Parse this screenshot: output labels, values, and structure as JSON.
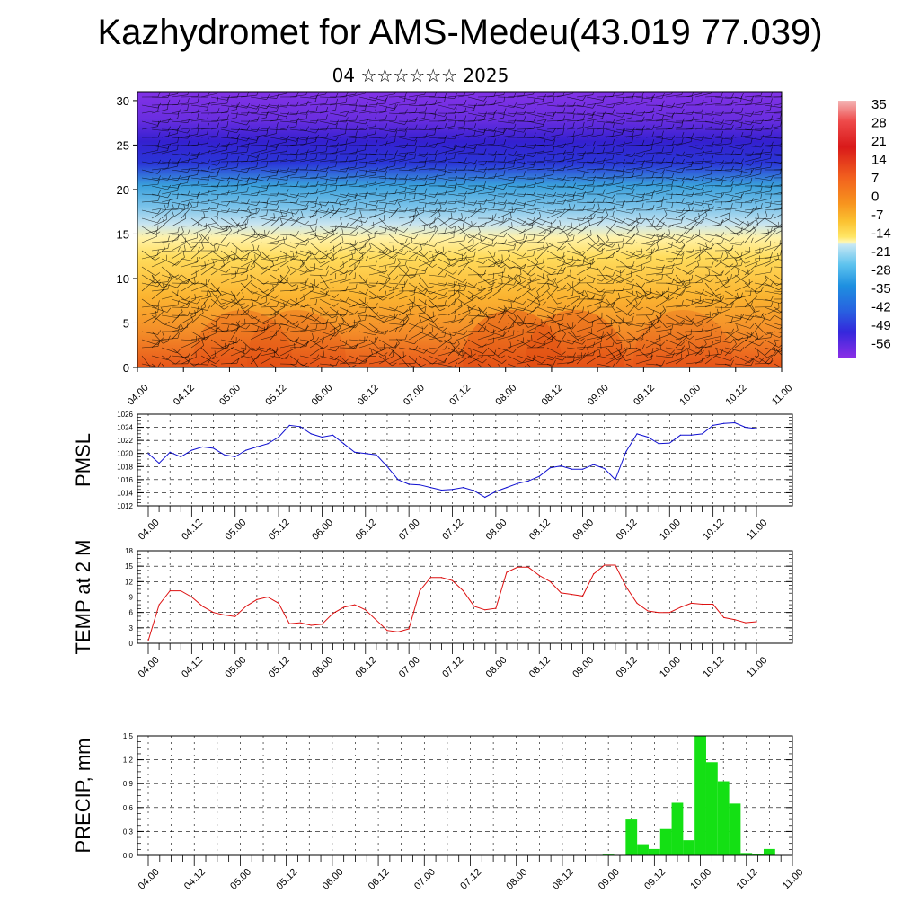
{
  "title": "Kazhydromet for AMS-Medeu(43.019 77.039)",
  "subtitle": "04 ☆☆☆☆☆☆ 2025",
  "colorbar": {
    "labels": [
      "35",
      "28",
      "21",
      "14",
      "7",
      "0",
      "-7",
      "-14",
      "-21",
      "-28",
      "-35",
      "-42",
      "-49",
      "-56"
    ]
  },
  "chart_data": [
    {
      "type": "heatmap",
      "name": "temperature-wind-cross-section",
      "x_ticks": [
        "04.00",
        "04.12",
        "05.00",
        "05.12",
        "06.00",
        "06.12",
        "07.00",
        "07.12",
        "08.00",
        "08.12",
        "09.00",
        "09.12",
        "10.00",
        "10.12",
        "11.00"
      ],
      "y_ticks": [
        "0",
        "5",
        "10",
        "15",
        "20",
        "25",
        "30"
      ],
      "ylim": [
        0,
        31
      ],
      "colors": {
        "warm": "#e8561a",
        "mid": "#ffd84a",
        "cold": "#7dc4ea",
        "upper": "#2a36d8",
        "top": "#7a2ee0"
      }
    },
    {
      "type": "line",
      "ylabel": "PMSL",
      "color": "#1010d0",
      "x_ticks": [
        "04.00",
        "04.12",
        "05.00",
        "05.12",
        "06.00",
        "06.12",
        "07.00",
        "07.12",
        "08.00",
        "08.12",
        "09.00",
        "09.12",
        "10.00",
        "10.12",
        "11.00"
      ],
      "y_ticks": [
        "1012",
        "1014",
        "1016",
        "1018",
        "1020",
        "1022",
        "1024",
        "1026"
      ],
      "ylim": [
        1012,
        1026
      ],
      "x": [
        0,
        3,
        6,
        9,
        12,
        15,
        18,
        21,
        24,
        27,
        30,
        33,
        36,
        39,
        42,
        45,
        48,
        51,
        54,
        57,
        60,
        63,
        66,
        69,
        72,
        75,
        78,
        81,
        84,
        87,
        90,
        93,
        96,
        99,
        102,
        105,
        108,
        111,
        114,
        117,
        120,
        123,
        126,
        129,
        132,
        135,
        138,
        141,
        144,
        147,
        150,
        153,
        156,
        159,
        162,
        165,
        168
      ],
      "values": [
        1020.0,
        1018.5,
        1020.2,
        1019.5,
        1020.5,
        1021.0,
        1020.8,
        1019.8,
        1019.5,
        1020.5,
        1021.0,
        1021.5,
        1022.5,
        1024.3,
        1024.1,
        1023.0,
        1022.5,
        1022.8,
        1021.5,
        1020.2,
        1020.0,
        1019.8,
        1018.0,
        1016.0,
        1015.3,
        1015.2,
        1014.8,
        1014.4,
        1014.5,
        1014.8,
        1014.3,
        1013.3,
        1014.2,
        1014.8,
        1015.4,
        1015.8,
        1016.5,
        1017.8,
        1018.1,
        1017.6,
        1017.6,
        1018.3,
        1017.7,
        1016.0,
        1020.3,
        1023.0,
        1022.5,
        1021.5,
        1021.6,
        1022.8,
        1022.8,
        1023.0,
        1024.3,
        1024.6,
        1024.7,
        1024.0,
        1023.8
      ]
    },
    {
      "type": "line",
      "ylabel": "TEMP at 2 M",
      "color": "#dd1010",
      "x_ticks": [
        "04.00",
        "04.12",
        "05.00",
        "05.12",
        "06.00",
        "06.12",
        "07.00",
        "07.12",
        "08.00",
        "08.12",
        "09.00",
        "09.12",
        "10.00",
        "10.12",
        "11.00"
      ],
      "y_ticks": [
        "0",
        "3",
        "6",
        "9",
        "12",
        "15",
        "18"
      ],
      "ylim": [
        0,
        18
      ],
      "x": [
        0,
        3,
        6,
        9,
        12,
        15,
        18,
        21,
        24,
        27,
        30,
        33,
        36,
        39,
        42,
        45,
        48,
        51,
        54,
        57,
        60,
        63,
        66,
        69,
        72,
        75,
        78,
        81,
        84,
        87,
        90,
        93,
        96,
        99,
        102,
        105,
        108,
        111,
        114,
        117,
        120,
        123,
        126,
        129,
        132,
        135,
        138,
        141,
        144,
        147,
        150,
        153,
        156,
        159,
        162,
        165,
        168
      ],
      "values": [
        0.5,
        7.5,
        10.2,
        10.2,
        9.0,
        7.2,
        6.0,
        5.5,
        5.2,
        7.2,
        8.5,
        9.0,
        7.8,
        3.8,
        4.0,
        3.5,
        3.7,
        5.8,
        7.0,
        7.5,
        6.5,
        4.5,
        2.5,
        2.2,
        2.8,
        10.2,
        12.8,
        12.8,
        12.2,
        10.2,
        7.2,
        6.5,
        6.8,
        13.8,
        14.8,
        14.8,
        13.2,
        12.0,
        9.8,
        9.5,
        9.2,
        13.5,
        15.2,
        15.2,
        11.0,
        7.8,
        6.3,
        6.0,
        6.0,
        7.0,
        7.8,
        7.6,
        7.6,
        5.0,
        4.6,
        4.0,
        4.2
      ]
    },
    {
      "type": "bar",
      "ylabel": "PRECIP, mm",
      "color": "#14e014",
      "x_ticks": [
        "04.00",
        "04.12",
        "05.00",
        "05.12",
        "06.00",
        "06.12",
        "07.00",
        "07.12",
        "08.00",
        "08.12",
        "09.00",
        "09.12",
        "10.00",
        "10.12",
        "11.00"
      ],
      "y_ticks": [
        "0.0",
        "0.3",
        "0.6",
        "0.9",
        "1.2",
        "1.5"
      ],
      "ylim": [
        0,
        1.5
      ],
      "x": [
        120,
        123,
        126,
        129,
        132,
        135,
        138,
        141,
        144,
        147,
        150,
        153,
        156,
        159,
        162,
        165
      ],
      "values": [
        0.01,
        0.0,
        0.45,
        0.14,
        0.08,
        0.33,
        0.66,
        0.19,
        1.5,
        1.17,
        0.93,
        0.65,
        0.03,
        0.02,
        0.08,
        0.0
      ]
    }
  ]
}
